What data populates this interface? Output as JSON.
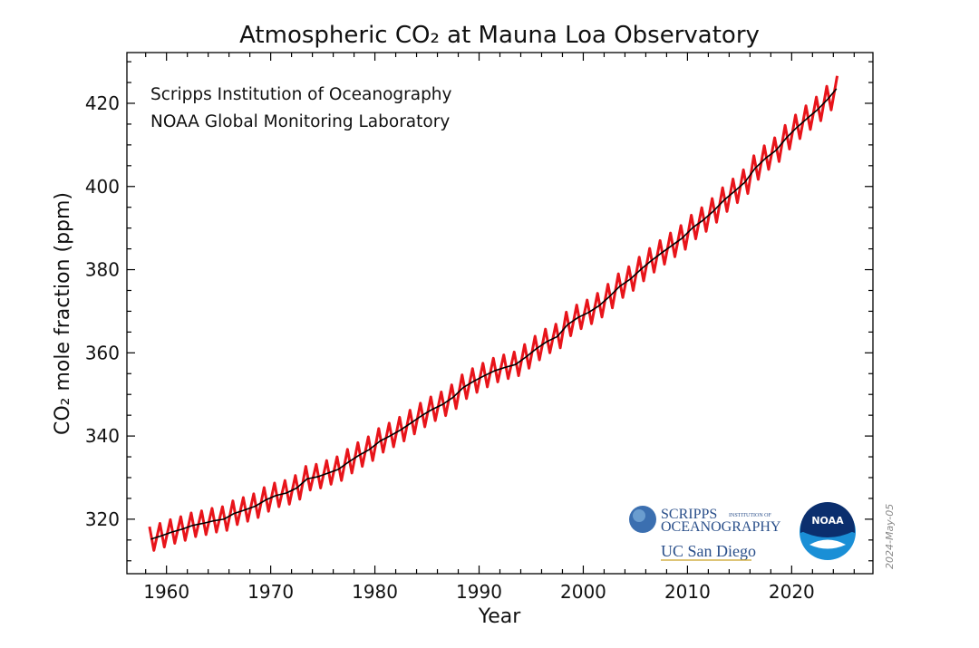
{
  "chart_data": {
    "type": "line",
    "title": "Atmospheric CO₂ at Mauna Loa Observatory",
    "xlabel": "Year",
    "ylabel": "CO₂ mole fraction (ppm)",
    "annotations": [
      "Scripps Institution of Oceanography",
      "NOAA Global Monitoring Laboratory"
    ],
    "date_stamp": "2024-May-05",
    "logos": {
      "scripps": [
        "SCRIPPS",
        "INSTITUTION OF",
        "OCEANOGRAPHY"
      ],
      "ucsd": "UC San Diego",
      "noaa": "NOAA"
    },
    "xlim": [
      1956.2,
      2027.8
    ],
    "ylim": [
      306.9,
      432.2
    ],
    "xticks": [
      1960,
      1970,
      1980,
      1990,
      2000,
      2010,
      2020
    ],
    "yticks": [
      320,
      340,
      360,
      380,
      400,
      420
    ],
    "xminorticks": [
      1958,
      1962,
      1964,
      1966,
      1968,
      1972,
      1974,
      1976,
      1978,
      1982,
      1984,
      1986,
      1988,
      1992,
      1994,
      1996,
      1998,
      2002,
      2004,
      2006,
      2008,
      2012,
      2014,
      2016,
      2018,
      2022,
      2024,
      2026
    ],
    "yminorticks": [
      310,
      315,
      325,
      330,
      335,
      345,
      350,
      355,
      365,
      370,
      375,
      385,
      390,
      395,
      405,
      410,
      415,
      425,
      430
    ],
    "series": [
      {
        "color": "#e8141a",
        "width": 3,
        "x": [
          1958.37,
          1958.79,
          1959.37,
          1959.79,
          1960.37,
          1960.79,
          1961.37,
          1961.79,
          1962.37,
          1962.79,
          1963.37,
          1963.79,
          1964.37,
          1964.79,
          1965.37,
          1965.79,
          1966.37,
          1966.79,
          1967.37,
          1967.79,
          1968.37,
          1968.79,
          1969.37,
          1969.79,
          1970.37,
          1970.79,
          1971.37,
          1971.79,
          1972.37,
          1972.79,
          1973.37,
          1973.79,
          1974.37,
          1974.79,
          1975.37,
          1975.79,
          1976.37,
          1976.79,
          1977.37,
          1977.79,
          1978.37,
          1978.79,
          1979.37,
          1979.79,
          1980.37,
          1980.79,
          1981.37,
          1981.79,
          1982.37,
          1982.79,
          1983.37,
          1983.79,
          1984.37,
          1984.79,
          1985.37,
          1985.79,
          1986.37,
          1986.79,
          1987.37,
          1987.79,
          1988.37,
          1988.79,
          1989.37,
          1989.79,
          1990.37,
          1990.79,
          1991.37,
          1991.79,
          1992.37,
          1992.79,
          1993.37,
          1993.79,
          1994.37,
          1994.79,
          1995.37,
          1995.79,
          1996.37,
          1996.79,
          1997.37,
          1997.79,
          1998.37,
          1998.79,
          1999.37,
          1999.79,
          2000.37,
          2000.79,
          2001.37,
          2001.79,
          2002.37,
          2002.79,
          2003.37,
          2003.79,
          2004.37,
          2004.79,
          2005.37,
          2005.79,
          2006.37,
          2006.79,
          2007.37,
          2007.79,
          2008.37,
          2008.79,
          2009.37,
          2009.79,
          2010.37,
          2010.79,
          2011.37,
          2011.79,
          2012.37,
          2012.79,
          2013.37,
          2013.79,
          2014.37,
          2014.79,
          2015.37,
          2015.79,
          2016.37,
          2016.79,
          2017.37,
          2017.79,
          2018.37,
          2018.79,
          2019.37,
          2019.79,
          2020.37,
          2020.79,
          2021.37,
          2021.79,
          2022.37,
          2022.79,
          2023.37,
          2023.79,
          2024.37
        ],
        "values": [
          318.2,
          312.5,
          319.0,
          313.3,
          319.9,
          314.2,
          320.6,
          314.9,
          321.5,
          315.8,
          322.0,
          316.3,
          322.6,
          316.9,
          323.0,
          317.3,
          324.4,
          318.7,
          325.2,
          319.5,
          326.1,
          320.4,
          327.6,
          321.9,
          328.7,
          323.0,
          329.3,
          323.6,
          330.5,
          324.8,
          332.7,
          327.0,
          333.2,
          327.5,
          334.1,
          328.4,
          335.0,
          329.3,
          336.8,
          331.1,
          338.4,
          332.7,
          339.8,
          334.1,
          341.8,
          336.1,
          343.1,
          337.4,
          344.5,
          338.8,
          346.2,
          340.5,
          347.9,
          342.2,
          349.4,
          343.7,
          350.6,
          344.9,
          352.3,
          346.6,
          354.7,
          349.0,
          356.2,
          350.5,
          357.5,
          351.8,
          358.7,
          353.0,
          359.5,
          353.8,
          360.2,
          354.5,
          362.0,
          356.3,
          364.0,
          358.3,
          365.7,
          360.0,
          366.9,
          361.2,
          369.8,
          364.1,
          371.5,
          365.8,
          372.7,
          367.0,
          374.3,
          368.6,
          376.5,
          370.8,
          379.0,
          373.3,
          380.7,
          375.0,
          383.0,
          377.3,
          385.1,
          379.4,
          387.0,
          381.3,
          388.8,
          383.1,
          390.6,
          384.9,
          393.1,
          387.4,
          394.9,
          389.2,
          397.1,
          391.4,
          399.7,
          394.0,
          401.8,
          396.1,
          404.0,
          398.3,
          407.4,
          401.7,
          409.8,
          404.1,
          411.7,
          406.0,
          414.7,
          409.0,
          417.2,
          411.5,
          419.4,
          413.7,
          421.5,
          415.8,
          424.1,
          418.4,
          426.6
        ]
      },
      {
        "color": "#000000",
        "width": 1.6,
        "x": [
          1958.5,
          1959.5,
          1960.5,
          1961.5,
          1962.5,
          1963.5,
          1964.5,
          1965.5,
          1966.5,
          1967.5,
          1968.5,
          1969.5,
          1970.5,
          1971.5,
          1972.5,
          1973.5,
          1974.5,
          1975.5,
          1976.5,
          1977.5,
          1978.5,
          1979.5,
          1980.5,
          1981.5,
          1982.5,
          1983.5,
          1984.5,
          1985.5,
          1986.5,
          1987.5,
          1988.5,
          1989.5,
          1990.5,
          1991.5,
          1992.5,
          1993.5,
          1994.5,
          1995.5,
          1996.5,
          1997.5,
          1998.5,
          1999.5,
          2000.5,
          2001.5,
          2002.5,
          2003.5,
          2004.5,
          2005.5,
          2006.5,
          2007.5,
          2008.5,
          2009.5,
          2010.5,
          2011.5,
          2012.5,
          2013.5,
          2014.5,
          2015.5,
          2016.5,
          2017.5,
          2018.5,
          2019.5,
          2020.5,
          2021.5,
          2022.5,
          2023.5,
          2024.3
        ],
        "values": [
          315.2,
          316.0,
          316.9,
          317.6,
          318.5,
          319.0,
          319.6,
          320.0,
          321.4,
          322.2,
          323.1,
          324.6,
          325.7,
          326.3,
          327.5,
          329.7,
          330.2,
          331.1,
          332.0,
          333.8,
          335.4,
          336.8,
          338.8,
          340.1,
          341.5,
          343.2,
          344.9,
          346.4,
          347.6,
          349.3,
          351.7,
          353.2,
          354.5,
          355.7,
          356.5,
          357.2,
          359.0,
          361.0,
          362.7,
          363.9,
          366.8,
          368.5,
          369.7,
          371.3,
          373.5,
          376.0,
          377.7,
          380.0,
          382.1,
          384.0,
          385.8,
          387.6,
          390.1,
          391.9,
          394.1,
          396.7,
          398.8,
          401.0,
          404.4,
          406.8,
          408.7,
          411.7,
          414.2,
          416.4,
          418.5,
          421.1,
          423.5
        ]
      }
    ]
  }
}
